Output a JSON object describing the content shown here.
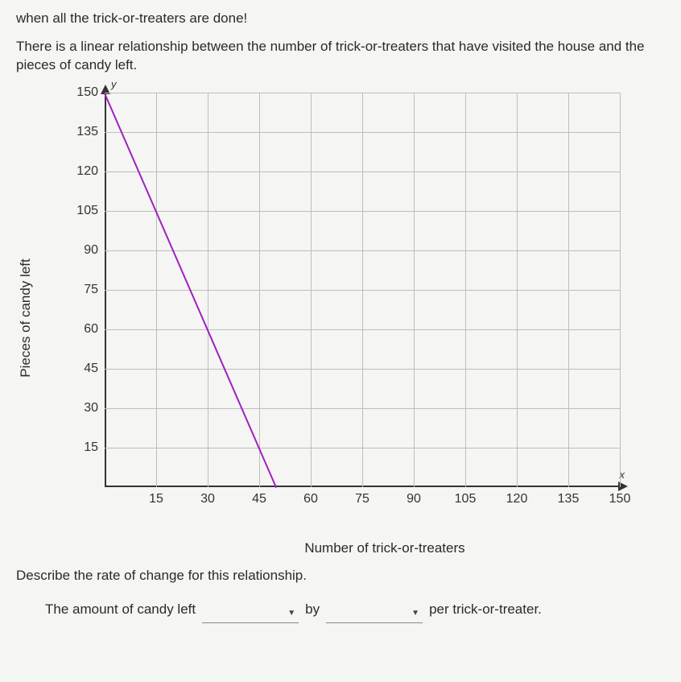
{
  "intro_line1": "when all the trick-or-treaters are done!",
  "intro_line2": "There is a linear relationship between the number of trick-or-treaters that have visited the house and the pieces of candy left.",
  "chart": {
    "type": "line",
    "ylabel": "Pieces of candy left",
    "xlabel": "Number of trick-or-treaters",
    "y_axis_letter": "y",
    "x_axis_letter": "x",
    "xlim": [
      0,
      150
    ],
    "ylim": [
      0,
      150
    ],
    "xtick_step": 15,
    "ytick_step": 15,
    "xticks": [
      15,
      30,
      45,
      60,
      75,
      90,
      105,
      120,
      135,
      150
    ],
    "yticks": [
      15,
      30,
      45,
      60,
      75,
      90,
      105,
      120,
      135,
      150
    ],
    "grid_color": "#bdbdbd",
    "axis_color": "#333333",
    "background_color": "#f5f5f3",
    "line_color": "#a020c0",
    "line_width": 2,
    "data_points": [
      {
        "x": 0,
        "y": 150
      },
      {
        "x": 50,
        "y": 0
      }
    ]
  },
  "question": "Describe the rate of change for this relationship.",
  "answer": {
    "prefix": "The amount of candy left",
    "by_word": "by",
    "suffix": "per trick-or-treater.",
    "dropdown1_value": "",
    "dropdown2_value": ""
  }
}
